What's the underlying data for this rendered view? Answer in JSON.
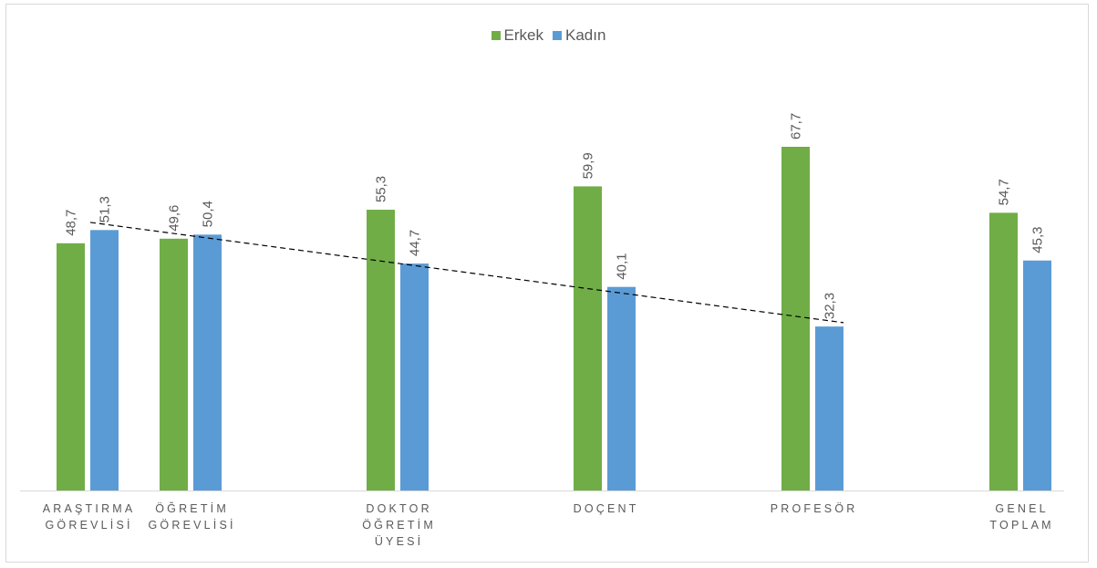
{
  "chart_data": {
    "type": "bar",
    "categories": [
      [
        "ARAŞTIRMA",
        "GÖREVLİSİ"
      ],
      [
        "ÖĞRETİM",
        "GÖREVLİSİ"
      ],
      [
        "DOKTOR",
        "ÖĞRETİM",
        "ÜYESİ"
      ],
      [
        "DOÇENT"
      ],
      [
        "PROFESÖR"
      ],
      [
        "GENEL",
        "TOPLAM"
      ]
    ],
    "series": [
      {
        "name": "Erkek",
        "color": "#70ad47",
        "values": [
          48.7,
          49.6,
          55.3,
          59.9,
          67.7,
          54.7
        ],
        "labels": [
          "48,7",
          "49,6",
          "55,3",
          "59,9",
          "67,7",
          "54,7"
        ]
      },
      {
        "name": "Kadın",
        "color": "#5b9bd5",
        "values": [
          51.3,
          50.4,
          44.7,
          40.1,
          32.3,
          45.3
        ],
        "labels": [
          "51,3",
          "50,4",
          "44,7",
          "40,1",
          "32,3",
          "45,3"
        ]
      }
    ],
    "trendline": {
      "series": "Kadın",
      "style": "dashed",
      "color": "#000000",
      "categories": [
        0,
        4
      ]
    },
    "ylim": [
      0,
      80
    ],
    "legend": "top-center",
    "grid": false,
    "xlabel": "",
    "ylabel": ""
  }
}
